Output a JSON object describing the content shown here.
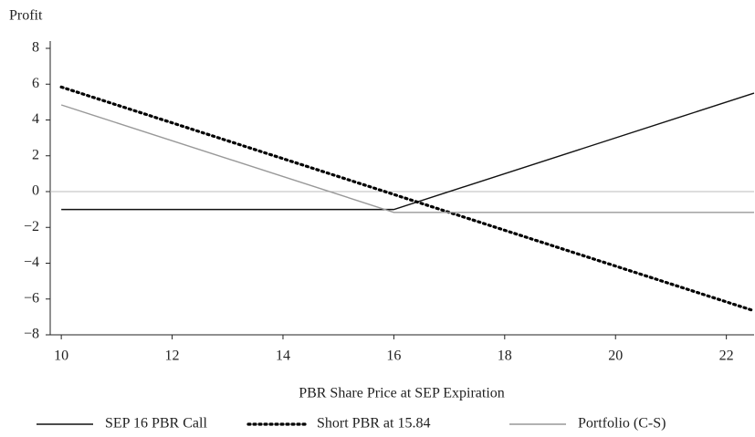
{
  "chart_data": {
    "type": "line",
    "y_label": "Profit",
    "x_label": "PBR Share Price at SEP Expiration",
    "x": [
      10,
      16,
      22.5
    ],
    "series": [
      {
        "name": "SEP 16 PBR Call",
        "color": "#111111",
        "style": "solid",
        "values": [
          -1,
          -1,
          5.5
        ]
      },
      {
        "name": "Short PBR at 15.84",
        "color": "#000000",
        "style": "dotted",
        "values": [
          5.84,
          -0.16,
          -6.66
        ]
      },
      {
        "name": "Portfolio (C-S)",
        "color": "#999999",
        "style": "solid",
        "values": [
          4.84,
          -1.16,
          -1.16
        ]
      }
    ],
    "xlim": [
      9.8,
      22.5
    ],
    "xticks": [
      10,
      12,
      14,
      16,
      18,
      20,
      22
    ],
    "ylim": [
      -8,
      8
    ],
    "yticks": [
      {
        "value": -8,
        "label": "−8"
      },
      {
        "value": -6,
        "label": "−6"
      },
      {
        "value": -4,
        "label": "−4"
      },
      {
        "value": -2,
        "label": "−2"
      },
      0,
      2,
      4,
      6,
      8
    ],
    "zero_line": true,
    "legend": "bottom"
  }
}
